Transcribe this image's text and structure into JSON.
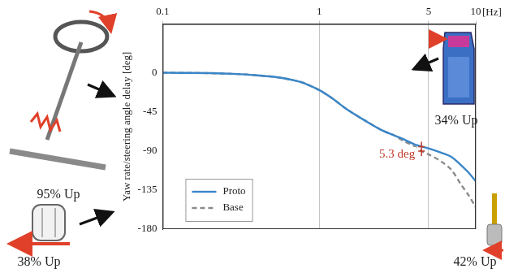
{
  "chart_data": {
    "type": "line",
    "y_label": "Yaw rate/steering angle delay [deg]",
    "x_label": "[Hz]",
    "log": "x",
    "grid": "x",
    "legend": "lower left",
    "xlim": [
      0.1,
      10
    ],
    "xticks": [
      0.1,
      1,
      5,
      10
    ],
    "ylim": [
      -180,
      56
    ],
    "yticks": [
      -180,
      -135,
      -90,
      -45,
      0
    ],
    "x": [
      0.1,
      0.2,
      0.3,
      0.4,
      0.5,
      0.6,
      0.7,
      0.8,
      1,
      1.2,
      1.5,
      2,
      2.5,
      3,
      3.5,
      4,
      4.5,
      5,
      6,
      7,
      8,
      9,
      10
    ],
    "series": [
      {
        "name": "Proto",
        "color": "#3a86c8",
        "line_style": "solid",
        "values": [
          0,
          -0.5,
          -1.5,
          -3,
          -4.5,
          -6.5,
          -9,
          -12,
          -20,
          -29,
          -42,
          -56,
          -66,
          -72,
          -77,
          -82,
          -85,
          -87,
          -92,
          -97,
          -106,
          -115,
          -125
        ]
      },
      {
        "name": "Base",
        "color": "#8a8a8a",
        "line_style": "dashed",
        "values": [
          0,
          -0.5,
          -1.5,
          -3,
          -4.5,
          -6.5,
          -9,
          -12,
          -20,
          -29,
          -42,
          -56,
          -66,
          -72,
          -79,
          -84,
          -90.3,
          -94,
          -102,
          -112,
          -128,
          -141,
          -155
        ]
      }
    ],
    "annotations": [
      {
        "text": "5.3 deg",
        "x": 4.5
      }
    ],
    "callouts": [
      "95% Up",
      "34% Up",
      "38% Up",
      "42% Up"
    ]
  }
}
